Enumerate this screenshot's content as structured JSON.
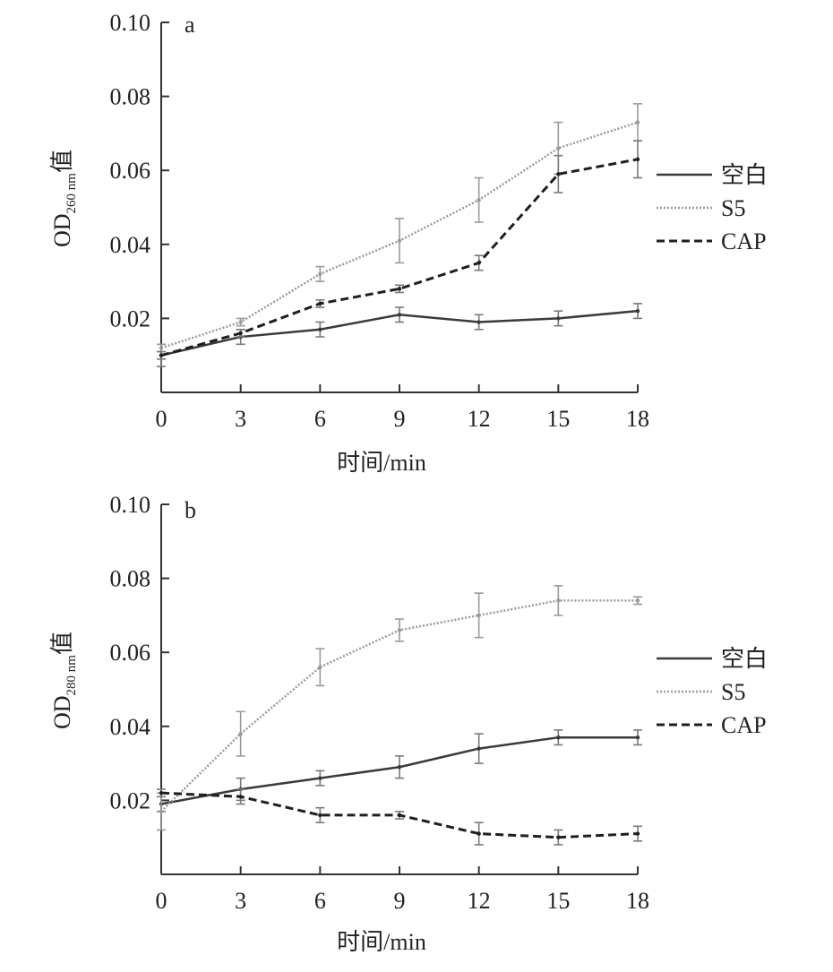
{
  "chart_data": [
    {
      "type": "line",
      "panel": "a",
      "ylabel_main": "OD",
      "ylabel_sub": "260 nm",
      "ylabel_suffix": "值",
      "xlabel": "时间/min",
      "x": [
        0,
        3,
        6,
        9,
        12,
        15,
        18
      ],
      "xticks": [
        "0",
        "3",
        "6",
        "9",
        "12",
        "15",
        "18"
      ],
      "yticks": [
        "0.02",
        "0.04",
        "0.06",
        "0.08",
        "0.10"
      ],
      "ytick_values": [
        0.02,
        0.04,
        0.06,
        0.08,
        0.1
      ],
      "ylim": [
        0.0,
        0.1
      ],
      "xlim": [
        0,
        18
      ],
      "legend_position": "right",
      "series": [
        {
          "name": "空白",
          "style": "solid",
          "color": "#3a3a3a",
          "values": [
            0.01,
            0.015,
            0.017,
            0.021,
            0.019,
            0.02,
            0.022
          ],
          "errors": [
            0.003,
            0.002,
            0.002,
            0.002,
            0.002,
            0.002,
            0.002
          ]
        },
        {
          "name": "S5",
          "style": "dotted",
          "color": "#9a9a9a",
          "values": [
            0.012,
            0.019,
            0.032,
            0.041,
            0.052,
            0.066,
            0.073
          ],
          "errors": [
            0.001,
            0.001,
            0.002,
            0.006,
            0.006,
            0.007,
            0.005
          ]
        },
        {
          "name": "CAP",
          "style": "dashed",
          "color": "#1f1f1f",
          "values": [
            0.01,
            0.016,
            0.024,
            0.028,
            0.035,
            0.059,
            0.063
          ],
          "errors": [
            0.001,
            0.001,
            0.001,
            0.001,
            0.002,
            0.005,
            0.005
          ]
        }
      ]
    },
    {
      "type": "line",
      "panel": "b",
      "ylabel_main": "OD",
      "ylabel_sub": "280 nm",
      "ylabel_suffix": "值",
      "xlabel": "时间/min",
      "x": [
        0,
        3,
        6,
        9,
        12,
        15,
        18
      ],
      "xticks": [
        "0",
        "3",
        "6",
        "9",
        "12",
        "15",
        "18"
      ],
      "yticks": [
        "0.02",
        "0.04",
        "0.06",
        "0.08",
        "0.10"
      ],
      "ytick_values": [
        0.02,
        0.04,
        0.06,
        0.08,
        0.1
      ],
      "ylim": [
        0.0,
        0.1
      ],
      "xlim": [
        0,
        18
      ],
      "legend_position": "right",
      "series": [
        {
          "name": "空白",
          "style": "solid",
          "color": "#3a3a3a",
          "values": [
            0.019,
            0.023,
            0.026,
            0.029,
            0.034,
            0.037,
            0.037
          ],
          "errors": [
            0.002,
            0.003,
            0.002,
            0.003,
            0.004,
            0.002,
            0.002
          ]
        },
        {
          "name": "S5",
          "style": "dotted",
          "color": "#9a9a9a",
          "values": [
            0.017,
            0.038,
            0.056,
            0.066,
            0.07,
            0.074,
            0.074
          ],
          "errors": [
            0.005,
            0.006,
            0.005,
            0.003,
            0.006,
            0.004,
            0.001
          ]
        },
        {
          "name": "CAP",
          "style": "dashed",
          "color": "#1f1f1f",
          "values": [
            0.022,
            0.021,
            0.016,
            0.016,
            0.011,
            0.01,
            0.011
          ],
          "errors": [
            0.001,
            0.002,
            0.002,
            0.001,
            0.003,
            0.002,
            0.002
          ]
        }
      ]
    }
  ]
}
